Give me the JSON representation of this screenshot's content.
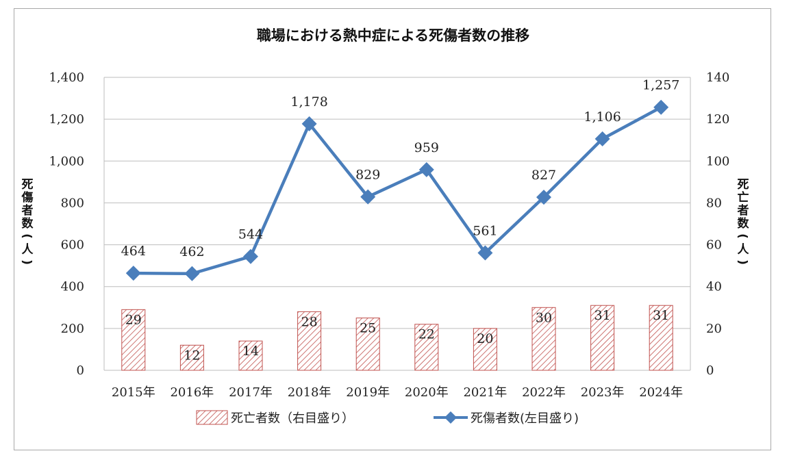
{
  "chart_data": {
    "type": "bar",
    "title": "職場における熱中症による死傷者数の推移",
    "categories": [
      "2015年",
      "2016年",
      "2017年",
      "2018年",
      "2019年",
      "2020年",
      "2021年",
      "2022年",
      "2023年",
      "2024年"
    ],
    "series": [
      {
        "name": "死亡者数（右目盛り）",
        "type": "bar",
        "axis": "right",
        "values": [
          29,
          12,
          14,
          28,
          25,
          22,
          20,
          30,
          31,
          31
        ],
        "labels": [
          "29",
          "12",
          "14",
          "28",
          "25",
          "22",
          "20",
          "30",
          "31",
          "31"
        ],
        "color": "#c0504d",
        "pattern": "diagonal-hatch"
      },
      {
        "name": "死傷者数(左目盛り)",
        "type": "line",
        "axis": "left",
        "marker": "diamond",
        "values": [
          464,
          462,
          544,
          1178,
          829,
          959,
          561,
          827,
          1106,
          1257
        ],
        "labels": [
          "464",
          "462",
          "544",
          "1,178",
          "829",
          "959",
          "561",
          "827",
          "1,106",
          "1,257"
        ],
        "color": "#4a7ebb"
      }
    ],
    "ylabel_left": "死傷者数(人)",
    "ylabel_right": "死亡者数(人)",
    "ylim_left": [
      0,
      1400
    ],
    "ylim_right": [
      0,
      140
    ],
    "yticks_left": [
      "0",
      "200",
      "400",
      "600",
      "800",
      "1,000",
      "1,200",
      "1,400"
    ],
    "yticks_right": [
      "0",
      "20",
      "40",
      "60",
      "80",
      "100",
      "120",
      "140"
    ],
    "grid": true,
    "legend_position": "bottom"
  }
}
